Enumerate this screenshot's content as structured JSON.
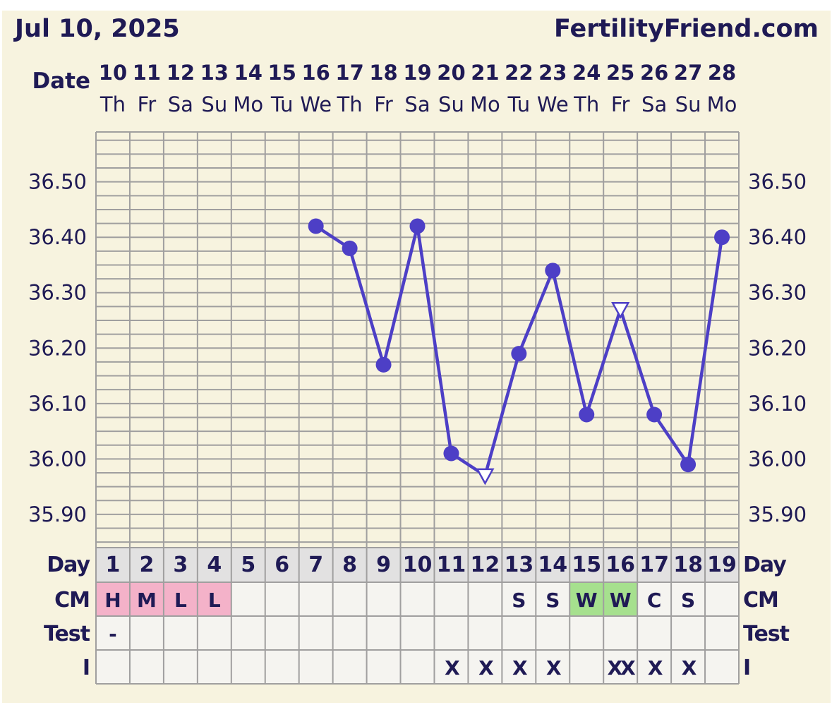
{
  "header": {
    "date": "Jul 10, 2025",
    "site": "FertilityFriend.com"
  },
  "labels": {
    "date": "Date",
    "day": "Day",
    "cm": "CM",
    "test": "Test",
    "intercourse": "I"
  },
  "colors": {
    "ink": "#1f1a55",
    "line": "#4d3fc6",
    "grid": "#a09f9f",
    "background": "#f7f3df",
    "cell": "#f5f4f0",
    "day_row": "#e2e1e1",
    "pink": "#f4b2c9",
    "green": "#a6e08e"
  },
  "chart_data": {
    "type": "line",
    "xlabel": "Date",
    "dates": [
      "10",
      "11",
      "12",
      "13",
      "14",
      "15",
      "16",
      "17",
      "18",
      "19",
      "20",
      "21",
      "22",
      "23",
      "24",
      "25",
      "26",
      "27",
      "28"
    ],
    "weekdays": [
      "Th",
      "Fr",
      "Sa",
      "Su",
      "Mo",
      "Tu",
      "We",
      "Th",
      "Fr",
      "Sa",
      "Su",
      "Mo",
      "Tu",
      "We",
      "Th",
      "Fr",
      "Sa",
      "Su",
      "Mo"
    ],
    "cycle_days": [
      "1",
      "2",
      "3",
      "4",
      "5",
      "6",
      "7",
      "8",
      "9",
      "10",
      "11",
      "12",
      "13",
      "14",
      "15",
      "16",
      "17",
      "18",
      "19"
    ],
    "y_ticks": [
      "36.50",
      "36.40",
      "36.30",
      "36.20",
      "36.10",
      "36.00",
      "35.90"
    ],
    "ylim": [
      35.84,
      36.59
    ],
    "series": [
      {
        "values": [
          null,
          null,
          null,
          null,
          null,
          null,
          36.42,
          36.38,
          36.17,
          36.42,
          36.01,
          35.97,
          36.19,
          36.34,
          36.08,
          36.27,
          36.08,
          35.99,
          36.4
        ],
        "markers": [
          null,
          null,
          null,
          null,
          null,
          null,
          "dot",
          "dot",
          "dot",
          "dot",
          "dot",
          "open-triangle",
          "dot",
          "dot",
          "dot",
          "open-triangle",
          "dot",
          "dot",
          "dot"
        ]
      }
    ],
    "cm": [
      "H",
      "M",
      "L",
      "L",
      "",
      "",
      "",
      "",
      "",
      "",
      "",
      "",
      "S",
      "S",
      "W",
      "W",
      "C",
      "S",
      ""
    ],
    "cm_colors": [
      "pink",
      "pink",
      "pink",
      "pink",
      "",
      "",
      "",
      "",
      "",
      "",
      "",
      "",
      "",
      "",
      "green",
      "green",
      "",
      "",
      ""
    ],
    "test": [
      "-",
      "",
      "",
      "",
      "",
      "",
      "",
      "",
      "",
      "",
      "",
      "",
      "",
      "",
      "",
      "",
      "",
      "",
      ""
    ],
    "intercourse": [
      "",
      "",
      "",
      "",
      "",
      "",
      "",
      "",
      "",
      "",
      "X",
      "X",
      "X",
      "X",
      "",
      "XX",
      "X",
      "X",
      ""
    ],
    "grid": true
  }
}
